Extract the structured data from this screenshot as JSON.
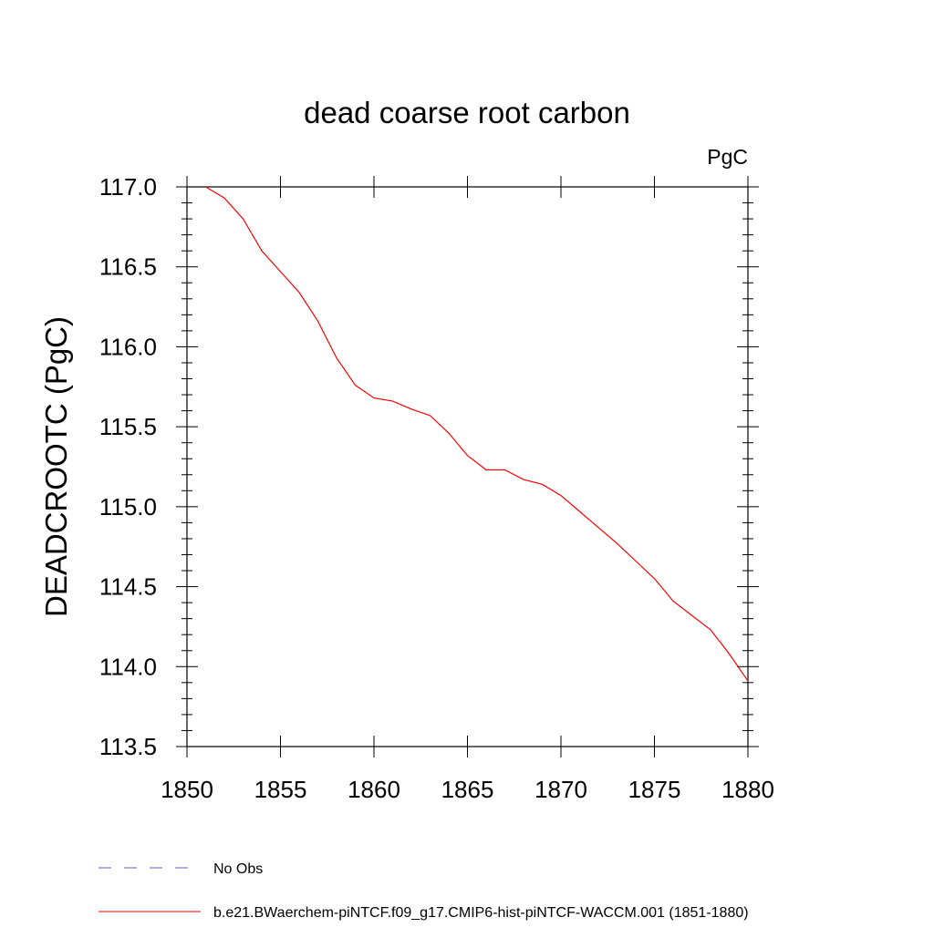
{
  "chart_data": {
    "type": "line",
    "title": "dead coarse root carbon",
    "units_label": "PgC",
    "xlabel": "",
    "ylabel": "DEADCROOTC  (PgC)",
    "xlim": [
      1850,
      1880
    ],
    "ylim": [
      113.5,
      117.0
    ],
    "x_ticks": [
      1850,
      1855,
      1860,
      1865,
      1870,
      1875,
      1880
    ],
    "x_tick_labels": [
      "1850",
      "1855",
      "1860",
      "1865",
      "1870",
      "1875",
      "1880"
    ],
    "y_ticks": [
      113.5,
      114.0,
      114.5,
      115.0,
      115.5,
      116.0,
      116.5,
      117.0
    ],
    "y_tick_labels": [
      "113.5",
      "114.0",
      "114.5",
      "115.0",
      "115.5",
      "116.0",
      "116.5",
      "117.0"
    ],
    "grid": false,
    "legend_position": "bottom-left, below plot",
    "series": [
      {
        "name": "b.e21.BWaerchem-piNTCF.f09_g17.CMIP6-hist-piNTCF-WACCM.001 (1851-1880)",
        "color": "#ff0000",
        "style": "solid",
        "x": [
          1851,
          1852,
          1853,
          1854,
          1855,
          1856,
          1857,
          1858,
          1859,
          1860,
          1861,
          1862,
          1863,
          1864,
          1865,
          1866,
          1867,
          1868,
          1869,
          1870,
          1871,
          1872,
          1873,
          1874,
          1875,
          1876,
          1877,
          1878,
          1879,
          1880
        ],
        "values": [
          117.0,
          116.93,
          116.8,
          116.6,
          116.47,
          116.34,
          116.16,
          115.93,
          115.76,
          115.68,
          115.66,
          115.61,
          115.57,
          115.46,
          115.32,
          115.23,
          115.23,
          115.17,
          115.14,
          115.07,
          114.97,
          114.87,
          114.77,
          114.66,
          114.55,
          114.41,
          114.32,
          114.23,
          114.08,
          113.91
        ]
      }
    ],
    "legend": [
      {
        "label": "No Obs",
        "color": "#6a5acd",
        "style": "dashed"
      },
      {
        "label": "b.e21.BWaerchem-piNTCF.f09_g17.CMIP6-hist-piNTCF-WACCM.001 (1851-1880)",
        "color": "#ff0000",
        "style": "solid"
      }
    ]
  }
}
